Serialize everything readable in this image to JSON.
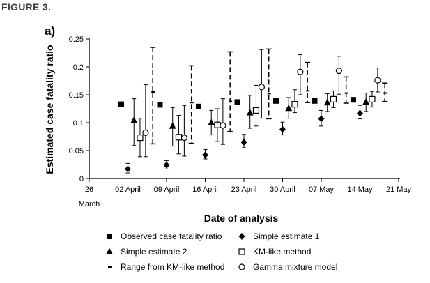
{
  "figure_label": "FIGURE 3.",
  "chart_data": {
    "type": "scatter",
    "panel_label": "a)",
    "title": "",
    "xlabel": "Date of analysis",
    "ylabel": "Estimated case fatality ratio",
    "x_day_range": [
      0,
      56
    ],
    "x_day_zero": "26 March",
    "ylim": [
      0,
      0.25
    ],
    "y_ticks": [
      0,
      0.05,
      0.1,
      0.15,
      0.2,
      0.25
    ],
    "y_tick_labels": [
      "0",
      "0.05",
      "0.1",
      "0.15",
      "0.2",
      "0.25"
    ],
    "x_tick_days": [
      0,
      7,
      14,
      21,
      28,
      35,
      42,
      49,
      56
    ],
    "x_tick_labels": [
      "26",
      "02 April",
      "09 April",
      "16 April",
      "23 April",
      "30 April",
      "07 May",
      "14 May",
      "21 May"
    ],
    "x_tick_sublabel": "March",
    "analysis_days": [
      7,
      14,
      21,
      28,
      35,
      42,
      49
    ],
    "series": [
      {
        "name": "Observed case fatality ratio",
        "key": "observed",
        "marker": "filled-square",
        "offset_days": -1.2,
        "values": [
          0.133,
          0.132,
          0.129,
          0.137,
          0.139,
          0.139,
          0.141
        ]
      },
      {
        "name": "Simple estimate 1",
        "key": "simple1",
        "marker": "filled-diamond",
        "offset_days": 0.0,
        "values": [
          0.017,
          0.024,
          0.042,
          0.065,
          0.088,
          0.107,
          0.117
        ],
        "lower": [
          0.01,
          0.017,
          0.035,
          0.055,
          0.078,
          0.094,
          0.107
        ],
        "upper": [
          0.027,
          0.032,
          0.052,
          0.079,
          0.101,
          0.122,
          0.131
        ]
      },
      {
        "name": "Simple estimate 2",
        "key": "simple2",
        "marker": "filled-triangle",
        "offset_days": 1.1,
        "values": [
          0.104,
          0.094,
          0.1,
          0.118,
          0.126,
          0.136,
          0.137
        ],
        "lower": [
          0.059,
          0.058,
          0.078,
          0.09,
          0.108,
          0.12,
          0.12
        ],
        "upper": [
          0.143,
          0.127,
          0.122,
          0.149,
          0.145,
          0.152,
          0.153
        ]
      },
      {
        "name": "KM-like method",
        "key": "km",
        "marker": "open-square",
        "offset_days": 2.2,
        "values": [
          0.073,
          0.074,
          0.096,
          0.122,
          0.133,
          0.142,
          0.142
        ],
        "lower": [
          0.039,
          0.044,
          0.066,
          0.094,
          0.118,
          0.127,
          0.128
        ],
        "upper": [
          0.108,
          0.113,
          0.125,
          0.167,
          0.159,
          0.157,
          0.156
        ]
      },
      {
        "name": "Gamma mixture model",
        "key": "gamma",
        "marker": "open-circle",
        "offset_days": 3.2,
        "values": [
          0.082,
          0.073,
          0.095,
          0.164,
          0.191,
          0.193,
          0.176
        ],
        "lower": [
          0.039,
          0.04,
          0.061,
          0.108,
          0.15,
          0.151,
          0.155
        ],
        "upper": [
          0.168,
          0.131,
          0.143,
          0.231,
          0.222,
          0.219,
          0.198
        ]
      },
      {
        "name": "Range from KM-like method",
        "key": "kmrange",
        "marker": "dash",
        "offset_days": 4.5,
        "values": [
          0.155,
          0.136,
          0.138,
          0.152,
          0.157,
          0.153,
          0.153
        ],
        "lower": [
          0.062,
          0.063,
          0.084,
          0.107,
          0.136,
          0.135,
          0.138
        ],
        "upper": [
          0.235,
          0.202,
          0.227,
          0.232,
          0.208,
          0.182,
          0.171
        ]
      }
    ],
    "legend": [
      {
        "label": "Observed case fatality ratio",
        "marker": "filled-square",
        "column": 0,
        "row": 0
      },
      {
        "label": "Simple estimate 1",
        "marker": "filled-diamond",
        "column": 1,
        "row": 0
      },
      {
        "label": "Simple estimate 2",
        "marker": "filled-triangle",
        "column": 0,
        "row": 1
      },
      {
        "label": "KM-like method",
        "marker": "open-square",
        "column": 1,
        "row": 1
      },
      {
        "label": "Range from KM-like method",
        "marker": "dash",
        "column": 0,
        "row": 2
      },
      {
        "label": "Gamma mixture model",
        "marker": "open-circle",
        "column": 1,
        "row": 2
      }
    ],
    "legend_position": "bottom",
    "grid": false,
    "colors": {
      "ink": "#000000",
      "label_gray": "#404040"
    }
  }
}
